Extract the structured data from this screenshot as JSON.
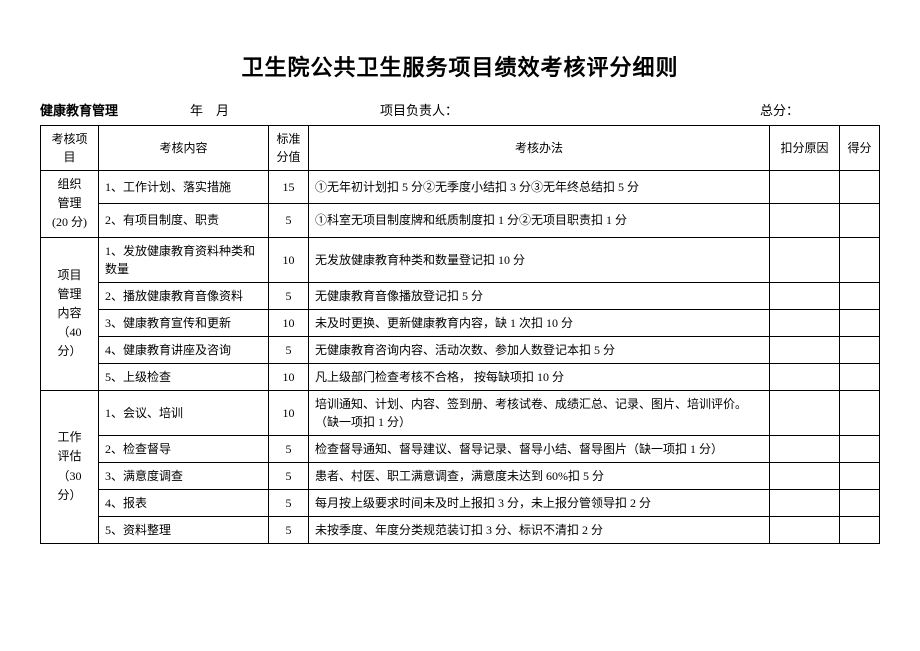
{
  "title": "卫生院公共卫生服务项目绩效考核评分细则",
  "header": {
    "subtitle": "健康教育管理",
    "date_label": "年 月",
    "leader_label": "项目负责人：",
    "score_label": "总分："
  },
  "columns": {
    "c1": "考核项目",
    "c2": "考核内容",
    "c3": "标准分值",
    "c4": "考核办法",
    "c5": "扣分原因",
    "c6": "得分"
  },
  "sections": [
    {
      "cat_lines": [
        "组织",
        "管理",
        "(20 分)"
      ],
      "rows": [
        {
          "content": "1、工作计划、落实措施",
          "std": "15",
          "method": "①无年初计划扣 5 分②无季度小结扣 3 分③无年终总结扣 5 分"
        },
        {
          "content": "2、有项目制度、职责",
          "std": "5",
          "method": "①科室无项目制度牌和纸质制度扣 1 分②无项目职责扣 1 分"
        }
      ]
    },
    {
      "cat_lines": [
        "项目",
        "管理",
        "内容",
        "（40 分）"
      ],
      "rows": [
        {
          "content": "1、发放健康教育资料种类和数量",
          "std": "10",
          "method": "无发放健康教育种类和数量登记扣 10 分"
        },
        {
          "content": "2、播放健康教育音像资料",
          "std": "5",
          "method": "无健康教育音像播放登记扣 5 分"
        },
        {
          "content": "3、健康教育宣传和更新",
          "std": "10",
          "method": "未及时更换、更新健康教育内容，缺 1 次扣 10 分"
        },
        {
          "content": "4、健康教育讲座及咨询",
          "std": "5",
          "method": "无健康教育咨询内容、活动次数、参加人数登记本扣 5 分"
        },
        {
          "content": "5、上级检查",
          "std": "10",
          "method": "凡上级部门检查考核不合格， 按每缺项扣 10 分"
        }
      ]
    },
    {
      "cat_lines": [
        "工作",
        "评估",
        "（30 分）"
      ],
      "rows": [
        {
          "content": "1、会议、培训",
          "std": "10",
          "method": "培训通知、计划、内容、签到册、考核试卷、成绩汇总、记录、图片、培训评价。（缺一项扣 1 分）"
        },
        {
          "content": "2、检查督导",
          "std": "5",
          "method": "检查督导通知、督导建议、督导记录、督导小结、督导图片（缺一项扣 1 分）"
        },
        {
          "content": "3、满意度调查",
          "std": "5",
          "method": "患者、村医、职工满意调查，满意度未达到 60%扣 5 分"
        },
        {
          "content": "4、报表",
          "std": "5",
          "method": "每月按上级要求时间未及时上报扣 3 分，未上报分管领导扣 2 分"
        },
        {
          "content": "5、资料整理",
          "std": "5",
          "method": "未按季度、年度分类规范装订扣 3 分、标识不清扣 2 分"
        }
      ]
    }
  ]
}
